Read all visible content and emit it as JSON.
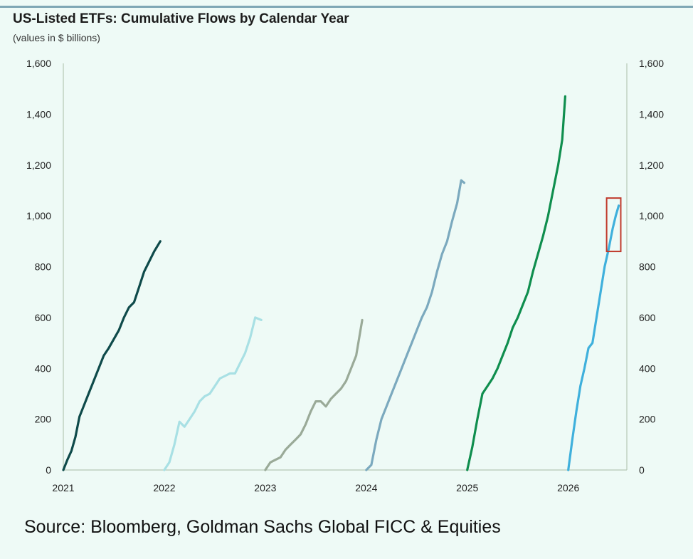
{
  "title": "US-Listed ETFs: Cumulative Flows by Calendar Year",
  "subtitle": "(values in $ billions)",
  "source": "Source: Bloomberg, Goldman Sachs Global FICC & Equities",
  "chart_data": {
    "type": "line",
    "title": "US-Listed ETFs: Cumulative Flows by Calendar Year",
    "subtitle": "(values in $ billions)",
    "xlabel": "",
    "ylabel": "",
    "x_ticks": [
      "2021",
      "2022",
      "2023",
      "2024",
      "2025",
      "2026"
    ],
    "y_ticks": [
      "0",
      "200",
      "400",
      "600",
      "800",
      "1,000",
      "1,200",
      "1,400",
      "1,600"
    ],
    "ylim": [
      0,
      1600
    ],
    "y_axis_both_sides": true,
    "grid": false,
    "legend": "none",
    "highlight": {
      "x": [
        2026.38,
        2026.52
      ],
      "y": [
        860,
        1070
      ],
      "color": "#c0392b"
    },
    "series": [
      {
        "color": "#0e4a4a",
        "x": [
          2021.0,
          2021.04,
          2021.08,
          2021.12,
          2021.16,
          2021.2,
          2021.25,
          2021.3,
          2021.35,
          2021.4,
          2021.45,
          2021.5,
          2021.55,
          2021.6,
          2021.65,
          2021.7,
          2021.75,
          2021.8,
          2021.85,
          2021.9,
          2021.96
        ],
        "y": [
          0,
          40,
          75,
          130,
          210,
          250,
          300,
          350,
          400,
          450,
          480,
          515,
          550,
          600,
          640,
          660,
          720,
          780,
          820,
          860,
          900
        ]
      },
      {
        "color": "#a8e0e4",
        "x": [
          2022.0,
          2022.05,
          2022.1,
          2022.15,
          2022.2,
          2022.25,
          2022.3,
          2022.35,
          2022.4,
          2022.45,
          2022.5,
          2022.55,
          2022.6,
          2022.65,
          2022.7,
          2022.75,
          2022.8,
          2022.85,
          2022.9,
          2022.96
        ],
        "y": [
          0,
          30,
          100,
          190,
          170,
          200,
          230,
          270,
          290,
          300,
          330,
          360,
          370,
          380,
          380,
          420,
          460,
          520,
          600,
          590
        ]
      },
      {
        "color": "#9aaa98",
        "x": [
          2023.0,
          2023.05,
          2023.1,
          2023.15,
          2023.2,
          2023.25,
          2023.3,
          2023.35,
          2023.4,
          2023.45,
          2023.5,
          2023.55,
          2023.6,
          2023.65,
          2023.7,
          2023.75,
          2023.8,
          2023.85,
          2023.9,
          2023.96
        ],
        "y": [
          0,
          30,
          40,
          50,
          80,
          100,
          120,
          140,
          180,
          230,
          270,
          270,
          250,
          280,
          300,
          320,
          350,
          400,
          450,
          590
        ]
      },
      {
        "color": "#7ba9be",
        "x": [
          2024.0,
          2024.05,
          2024.1,
          2024.15,
          2024.2,
          2024.25,
          2024.3,
          2024.35,
          2024.4,
          2024.45,
          2024.5,
          2024.55,
          2024.6,
          2024.65,
          2024.7,
          2024.75,
          2024.8,
          2024.85,
          2024.9,
          2024.94,
          2024.97
        ],
        "y": [
          0,
          20,
          120,
          200,
          250,
          300,
          350,
          400,
          450,
          500,
          550,
          600,
          640,
          700,
          780,
          850,
          900,
          980,
          1050,
          1140,
          1130
        ]
      },
      {
        "color": "#0f8e4e",
        "x": [
          2025.0,
          2025.05,
          2025.1,
          2025.15,
          2025.2,
          2025.25,
          2025.3,
          2025.35,
          2025.4,
          2025.45,
          2025.5,
          2025.55,
          2025.6,
          2025.65,
          2025.7,
          2025.75,
          2025.8,
          2025.85,
          2025.9,
          2025.94,
          2025.97
        ],
        "y": [
          0,
          90,
          200,
          300,
          330,
          360,
          400,
          450,
          500,
          560,
          600,
          650,
          700,
          780,
          850,
          920,
          1000,
          1100,
          1200,
          1300,
          1470
        ]
      },
      {
        "color": "#3fb0dc",
        "x": [
          2026.0,
          2026.04,
          2026.08,
          2026.12,
          2026.16,
          2026.2,
          2026.24,
          2026.28,
          2026.32,
          2026.36,
          2026.4,
          2026.44,
          2026.47,
          2026.5
        ],
        "y": [
          0,
          120,
          230,
          330,
          400,
          480,
          500,
          600,
          700,
          800,
          870,
          950,
          1000,
          1040
        ]
      }
    ]
  }
}
